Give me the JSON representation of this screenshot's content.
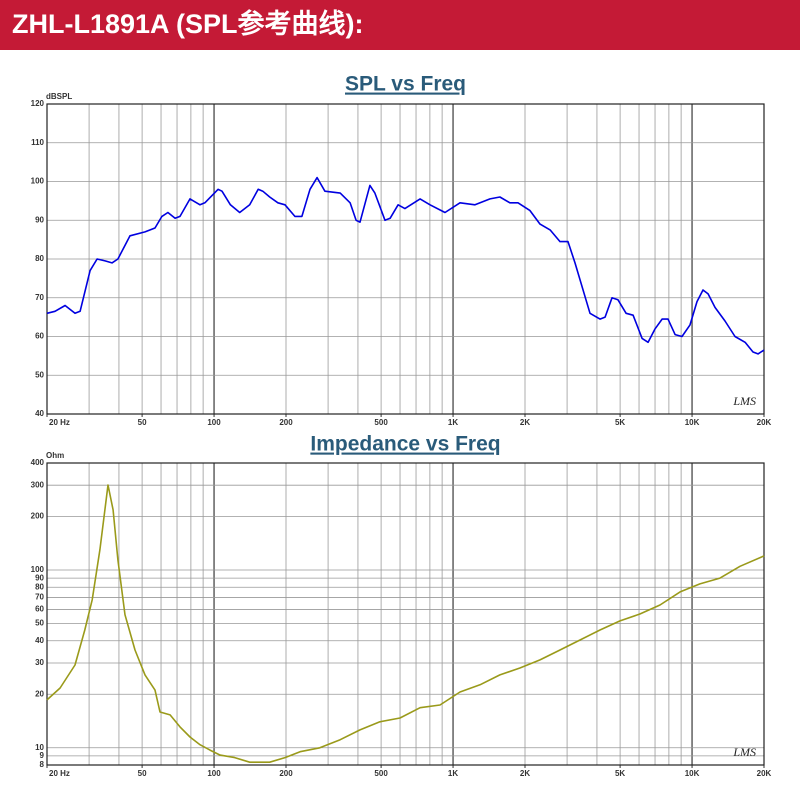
{
  "header": {
    "title": "ZHL-L1891A (SPL参考曲线):"
  },
  "chart_data": [
    {
      "type": "line",
      "title": "SPL vs Freq",
      "ylabel": "dBSPL",
      "watermark": "LMS",
      "xlog": true,
      "ylog": false,
      "grid": true,
      "xlim": [
        20,
        20000
      ],
      "ylim": [
        40,
        120
      ],
      "xticks": [
        {
          "value": 20,
          "label": "20 Hz"
        },
        50,
        100,
        200,
        500,
        {
          "value": 1000,
          "label": "1K"
        },
        {
          "value": 2000,
          "label": "2K"
        },
        {
          "value": 5000,
          "label": "5K"
        },
        {
          "value": 10000,
          "label": "10K"
        },
        {
          "value": 20000,
          "label": "20K"
        }
      ],
      "yticks": [
        40,
        50,
        60,
        70,
        80,
        90,
        100,
        110,
        120
      ],
      "x": [
        20,
        21.6,
        23.8,
        26.2,
        27.5,
        30.3,
        32.4,
        35,
        37.4,
        39.6,
        44.5,
        51.4,
        56.6,
        60.5,
        64.1,
        68.7,
        72,
        79.3,
        87.3,
        91.6,
        104,
        108,
        117,
        128,
        141,
        153,
        160,
        171,
        185,
        198,
        218,
        233,
        252,
        270,
        291,
        337,
        371,
        393,
        408,
        449,
        471,
        519,
        545,
        589,
        629,
        728,
        801,
        925,
        1069,
        1236,
        1428,
        1571,
        1730,
        1870,
        2099,
        2312,
        2546,
        2801,
        3027,
        3237,
        3740,
        4120,
        4326,
        4625,
        4897,
        5297,
        5666,
        6180,
        6547,
        7003,
        7490,
        7930,
        8490,
        9080,
        9800,
        10490,
        11110,
        11670,
        12480,
        13740,
        15130,
        16670,
        17990,
        18880,
        20000
      ],
      "series": [
        {
          "color": "#0000e0",
          "values": [
            66,
            66.5,
            68,
            66,
            66.5,
            77,
            80,
            79.5,
            79,
            80,
            86,
            87,
            88,
            91,
            92,
            90.5,
            91,
            95.5,
            94,
            94.5,
            98,
            97.5,
            94,
            92,
            94,
            98,
            97.5,
            96,
            94.5,
            94,
            91,
            91,
            98,
            101,
            97.5,
            97,
            94.5,
            90,
            89.5,
            99,
            97,
            90,
            90.5,
            94,
            93,
            95.5,
            94,
            92,
            94.5,
            94,
            95.5,
            96,
            94.5,
            94.5,
            92.5,
            89,
            87.5,
            84.5,
            84.5,
            79,
            66,
            64.5,
            65,
            70,
            69.5,
            66,
            65.5,
            59.5,
            58.5,
            62,
            64.5,
            64.5,
            60.5,
            60,
            63,
            69,
            72,
            71,
            67.5,
            64,
            60,
            58.5,
            56,
            55.5,
            56.5
          ]
        }
      ]
    },
    {
      "type": "line",
      "title": "Impedance vs Freq",
      "ylabel": "Ohm",
      "watermark": "LMS",
      "xlog": true,
      "ylog": true,
      "grid": true,
      "xlim": [
        20,
        20000
      ],
      "ylim": [
        8,
        400
      ],
      "xticks": [
        {
          "value": 20,
          "label": "20 Hz"
        },
        50,
        100,
        200,
        500,
        {
          "value": 1000,
          "label": "1K"
        },
        {
          "value": 2000,
          "label": "2K"
        },
        {
          "value": 5000,
          "label": "5K"
        },
        {
          "value": 10000,
          "label": "10K"
        },
        {
          "value": 20000,
          "label": "20K"
        }
      ],
      "yticks": [
        8,
        9,
        10,
        20,
        30,
        40,
        50,
        60,
        70,
        80,
        90,
        100,
        200,
        300,
        400
      ],
      "x": [
        20,
        22.7,
        26.2,
        28.8,
        30.9,
        33.3,
        36,
        37.8,
        39.6,
        42.4,
        46.7,
        51.4,
        56.6,
        59.4,
        65.5,
        72,
        79.3,
        87.3,
        96.2,
        106,
        122,
        141,
        171,
        198,
        229,
        277,
        337,
        408,
        494,
        600,
        728,
        882,
        1069,
        1297,
        1571,
        1905,
        2312,
        2801,
        3398,
        4120,
        4994,
        6052,
        7342,
        8910,
        10790,
        13090,
        15870,
        20000
      ],
      "series": [
        {
          "color": "#9a9a1a",
          "values": [
            18.6,
            21.7,
            29.2,
            46,
            68,
            130,
            301,
            218,
            114,
            56,
            35.5,
            25.7,
            21.1,
            15.9,
            15.3,
            13.1,
            11.5,
            10.4,
            9.7,
            9.1,
            8.8,
            8.3,
            8.3,
            8.8,
            9.5,
            10,
            11.1,
            12.6,
            14,
            14.7,
            16.8,
            17.4,
            20.6,
            22.6,
            25.7,
            28.1,
            31.2,
            35.5,
            40.4,
            46,
            51.7,
            56.6,
            63.6,
            75.3,
            83.5,
            90.1,
            105,
            120
          ]
        }
      ]
    }
  ]
}
